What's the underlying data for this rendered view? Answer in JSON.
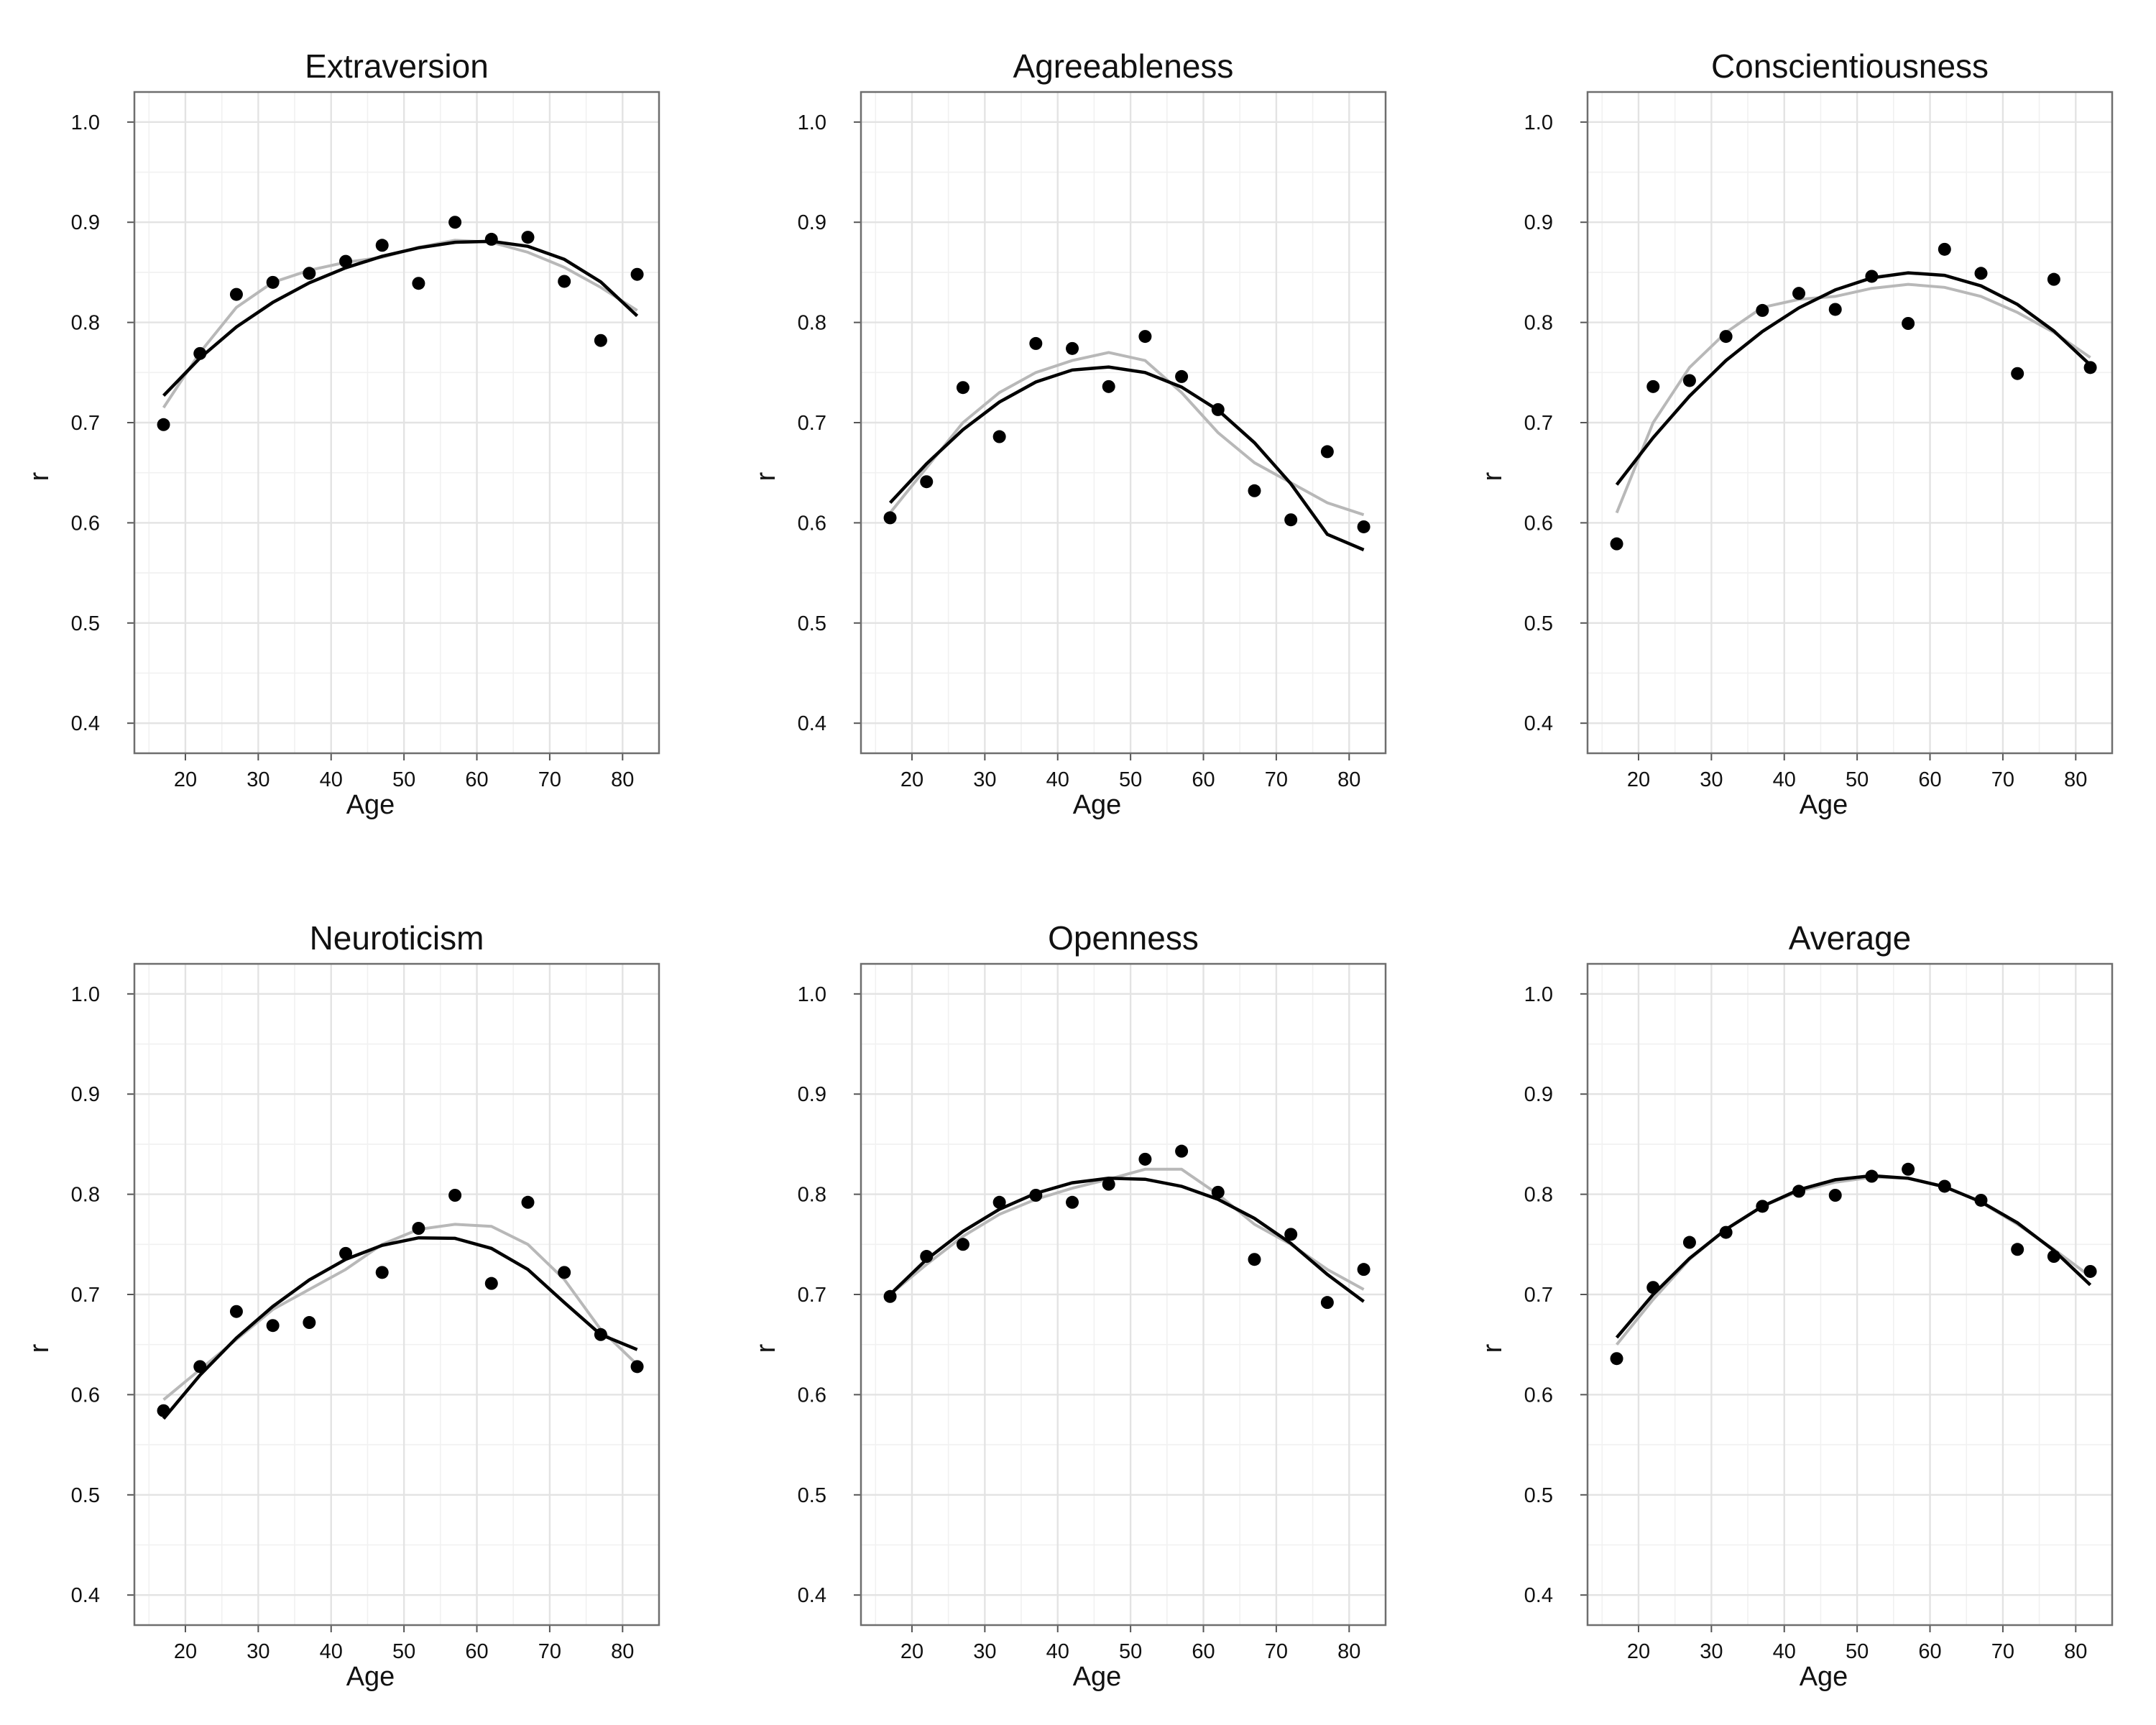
{
  "chart_data": [
    {
      "type": "scatter",
      "title": "Extraversion",
      "xlabel": "Age",
      "ylabel": "r",
      "xlim": [
        13,
        85
      ],
      "ylim": [
        0.37,
        1.03
      ],
      "xticks": [
        20,
        30,
        40,
        50,
        60,
        70,
        80
      ],
      "yticks": [
        0.4,
        0.5,
        0.6,
        0.7,
        0.8,
        0.9,
        1.0
      ],
      "grid": true,
      "x": [
        17,
        22,
        27,
        32,
        37,
        42,
        47,
        52,
        57,
        62,
        67,
        72,
        77,
        82
      ],
      "y": [
        0.698,
        0.769,
        0.828,
        0.84,
        0.849,
        0.861,
        0.877,
        0.839,
        0.9,
        0.883,
        0.885,
        0.841,
        0.782,
        0.848
      ],
      "quadratic_fit": [
        0.727,
        0.7645,
        0.7955,
        0.82,
        0.8395,
        0.8545,
        0.866,
        0.8745,
        0.88,
        0.881,
        0.876,
        0.863,
        0.8405,
        0.8065
      ],
      "smooth_fit": [
        0.715,
        0.77,
        0.815,
        0.84,
        0.852,
        0.86,
        0.865,
        0.875,
        0.882,
        0.88,
        0.87,
        0.855,
        0.835,
        0.812
      ]
    },
    {
      "type": "scatter",
      "title": "Agreeableness",
      "xlabel": "Age",
      "ylabel": "r",
      "xlim": [
        13,
        85
      ],
      "ylim": [
        0.37,
        1.03
      ],
      "xticks": [
        20,
        30,
        40,
        50,
        60,
        70,
        80
      ],
      "yticks": [
        0.4,
        0.5,
        0.6,
        0.7,
        0.8,
        0.9,
        1.0
      ],
      "grid": true,
      "x": [
        17,
        22,
        27,
        32,
        37,
        42,
        47,
        52,
        57,
        62,
        67,
        72,
        77,
        82
      ],
      "y": [
        0.605,
        0.641,
        0.735,
        0.686,
        0.779,
        0.774,
        0.736,
        0.786,
        0.746,
        0.713,
        0.632,
        0.603,
        0.671,
        0.596
      ],
      "quadratic_fit": [
        0.62,
        0.659,
        0.693,
        0.7205,
        0.7405,
        0.7525,
        0.7555,
        0.75,
        0.7355,
        0.7125,
        0.68,
        0.639,
        0.5885,
        0.573
      ],
      "smooth_fit": [
        0.61,
        0.655,
        0.7,
        0.73,
        0.75,
        0.762,
        0.77,
        0.762,
        0.73,
        0.69,
        0.66,
        0.64,
        0.62,
        0.608
      ]
    },
    {
      "type": "scatter",
      "title": "Conscientiousness",
      "xlabel": "Age",
      "ylabel": "r",
      "xlim": [
        13,
        85
      ],
      "ylim": [
        0.37,
        1.03
      ],
      "xticks": [
        20,
        30,
        40,
        50,
        60,
        70,
        80
      ],
      "yticks": [
        0.4,
        0.5,
        0.6,
        0.7,
        0.8,
        0.9,
        1.0
      ],
      "grid": true,
      "x": [
        17,
        22,
        27,
        32,
        37,
        42,
        47,
        52,
        57,
        62,
        67,
        72,
        77,
        82
      ],
      "y": [
        0.579,
        0.736,
        0.742,
        0.786,
        0.812,
        0.829,
        0.813,
        0.846,
        0.799,
        0.873,
        0.849,
        0.749,
        0.843,
        0.755
      ],
      "quadratic_fit": [
        0.638,
        0.685,
        0.7265,
        0.762,
        0.791,
        0.8145,
        0.8325,
        0.8445,
        0.8495,
        0.847,
        0.8365,
        0.818,
        0.7915,
        0.7575
      ],
      "smooth_fit": [
        0.61,
        0.7,
        0.755,
        0.79,
        0.815,
        0.823,
        0.826,
        0.834,
        0.838,
        0.835,
        0.826,
        0.81,
        0.79,
        0.765
      ]
    },
    {
      "type": "scatter",
      "title": "Neuroticism",
      "xlabel": "Age",
      "ylabel": "r",
      "xlim": [
        13,
        85
      ],
      "ylim": [
        0.37,
        1.03
      ],
      "xticks": [
        20,
        30,
        40,
        50,
        60,
        70,
        80
      ],
      "yticks": [
        0.4,
        0.5,
        0.6,
        0.7,
        0.8,
        0.9,
        1.0
      ],
      "grid": true,
      "x": [
        17,
        22,
        27,
        32,
        37,
        42,
        47,
        52,
        57,
        62,
        67,
        72,
        77,
        82
      ],
      "y": [
        0.584,
        0.628,
        0.683,
        0.669,
        0.672,
        0.741,
        0.722,
        0.766,
        0.799,
        0.711,
        0.792,
        0.722,
        0.66,
        0.628
      ],
      "quadratic_fit": [
        0.576,
        0.6195,
        0.6565,
        0.688,
        0.7145,
        0.735,
        0.749,
        0.7565,
        0.756,
        0.746,
        0.725,
        0.692,
        0.66,
        0.645
      ],
      "smooth_fit": [
        0.595,
        0.625,
        0.655,
        0.685,
        0.705,
        0.725,
        0.75,
        0.765,
        0.77,
        0.768,
        0.75,
        0.715,
        0.665,
        0.63
      ]
    },
    {
      "type": "scatter",
      "title": "Openness",
      "xlabel": "Age",
      "ylabel": "r",
      "xlim": [
        13,
        85
      ],
      "ylim": [
        0.37,
        1.03
      ],
      "xticks": [
        20,
        30,
        40,
        50,
        60,
        70,
        80
      ],
      "yticks": [
        0.4,
        0.5,
        0.6,
        0.7,
        0.8,
        0.9,
        1.0
      ],
      "grid": true,
      "x": [
        17,
        22,
        27,
        32,
        37,
        42,
        47,
        52,
        57,
        62,
        67,
        72,
        77,
        82
      ],
      "y": [
        0.698,
        0.738,
        0.75,
        0.792,
        0.799,
        0.792,
        0.81,
        0.835,
        0.843,
        0.802,
        0.735,
        0.76,
        0.692,
        0.725
      ],
      "quadratic_fit": [
        0.7,
        0.735,
        0.763,
        0.785,
        0.801,
        0.8115,
        0.816,
        0.815,
        0.808,
        0.795,
        0.776,
        0.751,
        0.72,
        0.693
      ],
      "smooth_fit": [
        0.7,
        0.73,
        0.758,
        0.78,
        0.795,
        0.806,
        0.815,
        0.825,
        0.825,
        0.8,
        0.77,
        0.75,
        0.725,
        0.705
      ]
    },
    {
      "type": "scatter",
      "title": "Average",
      "xlabel": "Age",
      "ylabel": "r",
      "xlim": [
        13,
        85
      ],
      "ylim": [
        0.37,
        1.03
      ],
      "xticks": [
        20,
        30,
        40,
        50,
        60,
        70,
        80
      ],
      "yticks": [
        0.4,
        0.5,
        0.6,
        0.7,
        0.8,
        0.9,
        1.0
      ],
      "grid": true,
      "x": [
        17,
        22,
        27,
        32,
        37,
        42,
        47,
        52,
        57,
        62,
        67,
        72,
        77,
        82
      ],
      "y": [
        0.636,
        0.707,
        0.752,
        0.762,
        0.788,
        0.803,
        0.799,
        0.818,
        0.825,
        0.808,
        0.794,
        0.745,
        0.738,
        0.723
      ],
      "quadratic_fit": [
        0.657,
        0.7,
        0.736,
        0.765,
        0.788,
        0.8045,
        0.8145,
        0.8185,
        0.816,
        0.8075,
        0.7925,
        0.7715,
        0.744,
        0.7095
      ],
      "smooth_fit": [
        0.65,
        0.695,
        0.735,
        0.765,
        0.788,
        0.803,
        0.812,
        0.817,
        0.816,
        0.808,
        0.792,
        0.77,
        0.745,
        0.718
      ]
    }
  ]
}
